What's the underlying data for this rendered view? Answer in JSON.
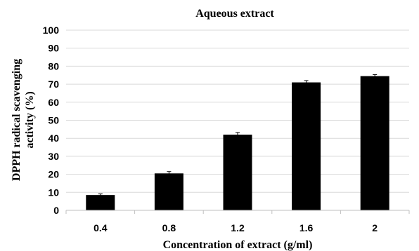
{
  "chart_data": {
    "type": "bar",
    "title": "Aqueous extract",
    "xlabel": "Concentration of extract (g/ml)",
    "ylabel_lines": [
      "DPPH radical scavenging",
      "activity (%)"
    ],
    "categories": [
      "0.4",
      "0.8",
      "1.2",
      "1.6",
      "2"
    ],
    "values": [
      8.5,
      20.5,
      42,
      71,
      74.5
    ],
    "errors": [
      0.6,
      1.0,
      1.2,
      1.0,
      0.8
    ],
    "ylim": [
      0,
      100
    ],
    "yticks": [
      0,
      10,
      20,
      30,
      40,
      50,
      60,
      70,
      80,
      90,
      100
    ],
    "grid": true,
    "bar_color": "#000000"
  }
}
